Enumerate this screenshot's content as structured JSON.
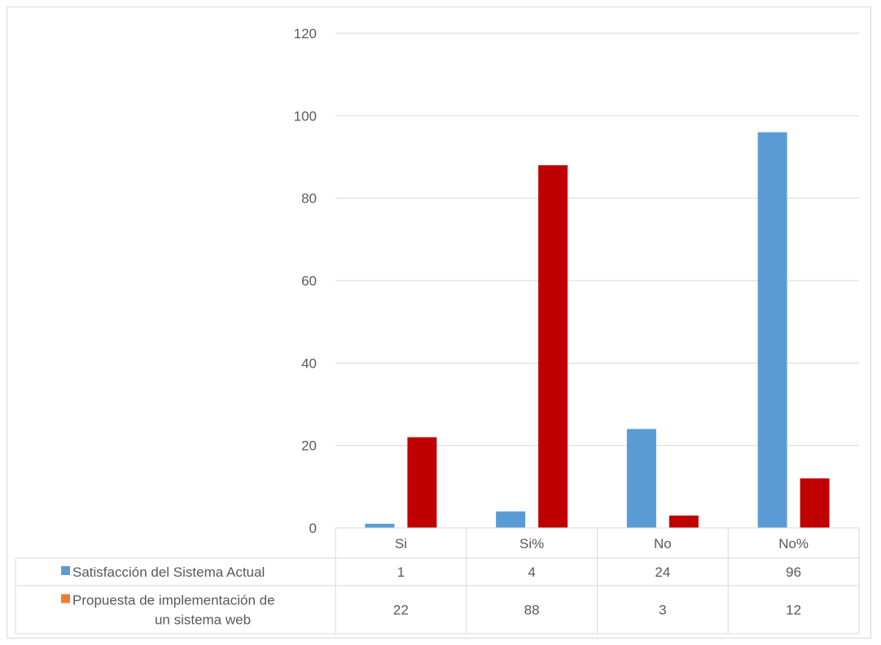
{
  "chart_data": {
    "type": "bar",
    "categories": [
      "Si",
      "Si%",
      "No",
      "No%"
    ],
    "series": [
      {
        "name": "Satisfacción del Sistema Actual",
        "label_lines": [
          "Satisfacción del Sistema Actual"
        ],
        "values": [
          1,
          4,
          24,
          96
        ],
        "bar_color": "#5b9bd5",
        "legend_color": "#5b9bd5"
      },
      {
        "name": "Propuesta de implementación de un sistema web",
        "label_lines": [
          "Propuesta de implementación de",
          "un sistema web"
        ],
        "values": [
          22,
          88,
          3,
          12
        ],
        "bar_color": "#c00000",
        "legend_color": "#ed7d31"
      }
    ],
    "ylim": [
      0,
      120
    ],
    "yticks": [
      0,
      20,
      40,
      60,
      80,
      100,
      120
    ],
    "grid": true,
    "legend": "data-table"
  }
}
